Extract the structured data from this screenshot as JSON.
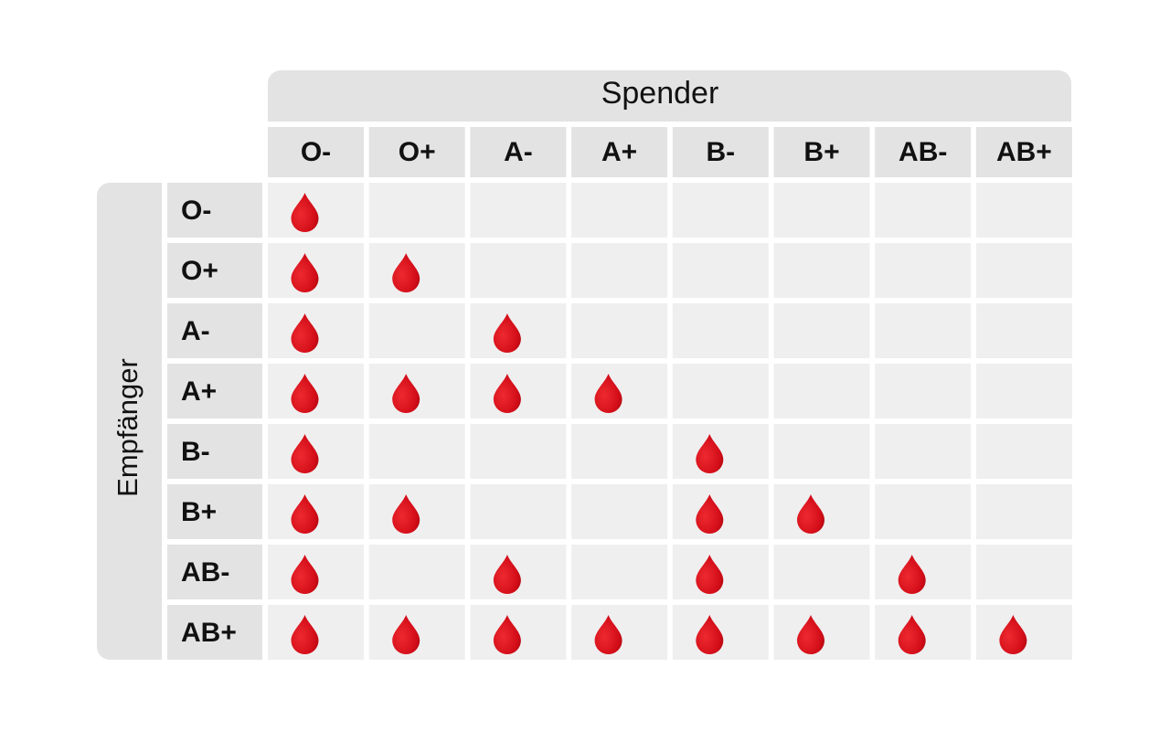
{
  "header": {
    "title": "Spender"
  },
  "side": {
    "title": "Empfänger"
  },
  "table": {
    "columns": [
      "O-",
      "O+",
      "A-",
      "A+",
      "B-",
      "B+",
      "AB-",
      "AB+"
    ],
    "rows": [
      {
        "label": "O-",
        "compatible": [
          true,
          false,
          false,
          false,
          false,
          false,
          false,
          false
        ]
      },
      {
        "label": "O+",
        "compatible": [
          true,
          true,
          false,
          false,
          false,
          false,
          false,
          false
        ]
      },
      {
        "label": "A-",
        "compatible": [
          true,
          false,
          true,
          false,
          false,
          false,
          false,
          false
        ]
      },
      {
        "label": "A+",
        "compatible": [
          true,
          true,
          true,
          true,
          false,
          false,
          false,
          false
        ]
      },
      {
        "label": "B-",
        "compatible": [
          true,
          false,
          false,
          false,
          true,
          false,
          false,
          false
        ]
      },
      {
        "label": "B+",
        "compatible": [
          true,
          true,
          false,
          false,
          true,
          true,
          false,
          false
        ]
      },
      {
        "label": "AB-",
        "compatible": [
          true,
          false,
          true,
          false,
          true,
          false,
          true,
          false
        ]
      },
      {
        "label": "AB+",
        "compatible": [
          true,
          true,
          true,
          true,
          true,
          true,
          true,
          true
        ]
      }
    ]
  }
}
